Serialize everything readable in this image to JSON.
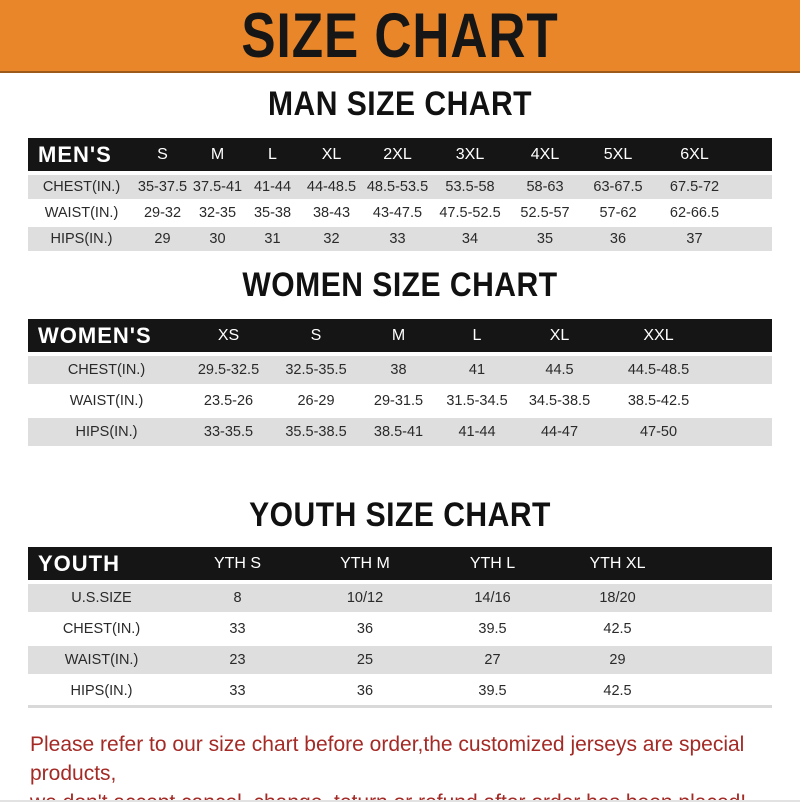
{
  "banner": {
    "title": "SIZE CHART"
  },
  "colors": {
    "banner_bg": "#E98629",
    "banner_text": "#161616",
    "heading_text": "#111111",
    "header_bar": "#151515",
    "header_text": "#ffffff",
    "row_alt": "#DEDEDE",
    "row_text": "#2A2A2A",
    "footer_text": "#A42A26"
  },
  "sections": [
    {
      "heading": "MAN SIZE CHART",
      "table": {
        "header_label": "MEN'S",
        "columns": [
          "S",
          "M",
          "L",
          "XL",
          "2XL",
          "3XL",
          "4XL",
          "5XL",
          "6XL"
        ],
        "rows": [
          {
            "label": "CHEST(IN.)",
            "values": [
              "35-37.5",
              "37.5-41",
              "41-44",
              "44-48.5",
              "48.5-53.5",
              "53.5-58",
              "58-63",
              "63-67.5",
              "67.5-72"
            ]
          },
          {
            "label": "WAIST(IN.)",
            "values": [
              "29-32",
              "32-35",
              "35-38",
              "38-43",
              "43-47.5",
              "47.5-52.5",
              "52.5-57",
              "57-62",
              "62-66.5"
            ]
          },
          {
            "label": "HIPS(IN.)",
            "values": [
              "29",
              "30",
              "31",
              "32",
              "33",
              "34",
              "35",
              "36",
              "37"
            ]
          }
        ]
      }
    },
    {
      "heading": "WOMEN SIZE CHART",
      "table": {
        "header_label": "WOMEN'S",
        "columns": [
          "XS",
          "S",
          "M",
          "L",
          "XL",
          "XXL"
        ],
        "rows": [
          {
            "label": "CHEST(IN.)",
            "values": [
              "29.5-32.5",
              "32.5-35.5",
              "38",
              "41",
              "44.5",
              "44.5-48.5"
            ]
          },
          {
            "label": "WAIST(IN.)",
            "values": [
              "23.5-26",
              "26-29",
              "29-31.5",
              "31.5-34.5",
              "34.5-38.5",
              "38.5-42.5"
            ]
          },
          {
            "label": "HIPS(IN.)",
            "values": [
              "33-35.5",
              "35.5-38.5",
              "38.5-41",
              "41-44",
              "44-47",
              "47-50"
            ]
          }
        ]
      }
    },
    {
      "heading": "YOUTH SIZE CHART",
      "table": {
        "header_label": "YOUTH",
        "columns": [
          "YTH S",
          "YTH M",
          "YTH L",
          "YTH XL"
        ],
        "rows": [
          {
            "label": "U.S.SIZE",
            "values": [
              "8",
              "10/12",
              "14/16",
              "18/20"
            ]
          },
          {
            "label": "CHEST(IN.)",
            "values": [
              "33",
              "36",
              "39.5",
              "42.5"
            ]
          },
          {
            "label": "WAIST(IN.)",
            "values": [
              "23",
              "25",
              "27",
              "29"
            ]
          },
          {
            "label": "HIPS(IN.)",
            "values": [
              "33",
              "36",
              "39.5",
              "42.5"
            ]
          }
        ]
      }
    }
  ],
  "footer": {
    "line1": "Please refer to our size chart before order,the customized jerseys are special products,",
    "line2": "we don't accept cancel, change, teturn or refund after order has been placed!"
  }
}
